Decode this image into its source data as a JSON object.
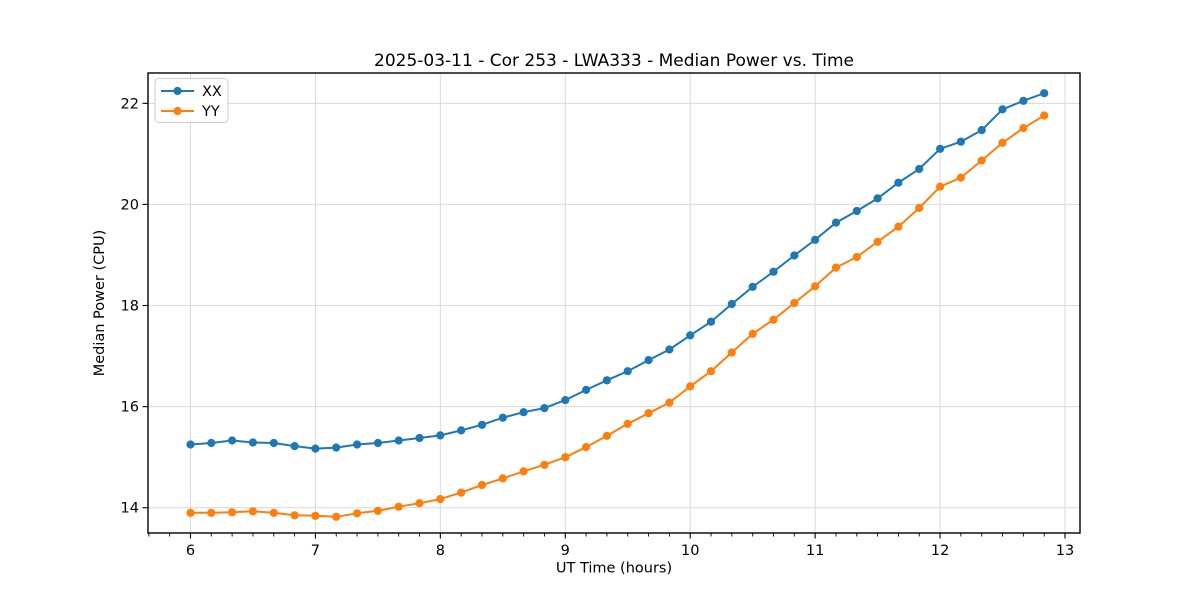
{
  "chart_data": {
    "type": "line",
    "title": "2025-03-11 - Cor 253 - LWA333 - Median Power vs. Time",
    "xlabel": "UT Time (hours)",
    "ylabel": "Median Power (CPU)",
    "xlim": [
      5.66,
      13.12
    ],
    "ylim": [
      13.5,
      22.6
    ],
    "x_ticks": [
      6,
      7,
      8,
      9,
      10,
      11,
      12,
      13
    ],
    "y_ticks": [
      14,
      16,
      18,
      20,
      22
    ],
    "x_minor_tick_step": 0.166667,
    "grid": true,
    "legend": {
      "position": "upper left",
      "entries": [
        "XX",
        "YY"
      ]
    },
    "series": [
      {
        "name": "XX",
        "color": "#1f77b4",
        "marker": "circle",
        "x": [
          6.0,
          6.1667,
          6.3333,
          6.5,
          6.6667,
          6.8333,
          7.0,
          7.1667,
          7.3333,
          7.5,
          7.6667,
          7.8333,
          8.0,
          8.1667,
          8.3333,
          8.5,
          8.6667,
          8.8333,
          9.0,
          9.1667,
          9.3333,
          9.5,
          9.6667,
          9.8333,
          10.0,
          10.1667,
          10.3333,
          10.5,
          10.6667,
          10.8333,
          11.0,
          11.1667,
          11.3333,
          11.5,
          11.6667,
          11.8333,
          12.0,
          12.1667,
          12.3333,
          12.5,
          12.6667,
          12.8333
        ],
        "y": [
          15.25,
          15.28,
          15.33,
          15.29,
          15.28,
          15.22,
          15.17,
          15.19,
          15.25,
          15.28,
          15.33,
          15.38,
          15.43,
          15.53,
          15.64,
          15.78,
          15.89,
          15.97,
          16.13,
          16.33,
          16.52,
          16.7,
          16.92,
          17.13,
          17.41,
          17.68,
          18.03,
          18.37,
          18.67,
          18.99,
          19.3,
          19.64,
          19.87,
          20.12,
          20.43,
          20.7,
          21.1,
          21.24,
          21.47,
          21.88,
          22.05,
          22.2
        ]
      },
      {
        "name": "YY",
        "color": "#ff7f0e",
        "marker": "circle",
        "x": [
          6.0,
          6.1667,
          6.3333,
          6.5,
          6.6667,
          6.8333,
          7.0,
          7.1667,
          7.3333,
          7.5,
          7.6667,
          7.8333,
          8.0,
          8.1667,
          8.3333,
          8.5,
          8.6667,
          8.8333,
          9.0,
          9.1667,
          9.3333,
          9.5,
          9.6667,
          9.8333,
          10.0,
          10.1667,
          10.3333,
          10.5,
          10.6667,
          10.8333,
          11.0,
          11.1667,
          11.3333,
          11.5,
          11.6667,
          11.8333,
          12.0,
          12.1667,
          12.3333,
          12.5,
          12.6667,
          12.8333
        ],
        "y": [
          13.9,
          13.9,
          13.91,
          13.93,
          13.9,
          13.85,
          13.84,
          13.82,
          13.89,
          13.94,
          14.02,
          14.09,
          14.17,
          14.3,
          14.45,
          14.58,
          14.72,
          14.85,
          15.0,
          15.2,
          15.42,
          15.66,
          15.87,
          16.08,
          16.4,
          16.7,
          17.07,
          17.44,
          17.72,
          18.05,
          18.38,
          18.75,
          18.96,
          19.26,
          19.56,
          19.93,
          20.35,
          20.53,
          20.87,
          21.22,
          21.51,
          21.76
        ]
      }
    ]
  }
}
